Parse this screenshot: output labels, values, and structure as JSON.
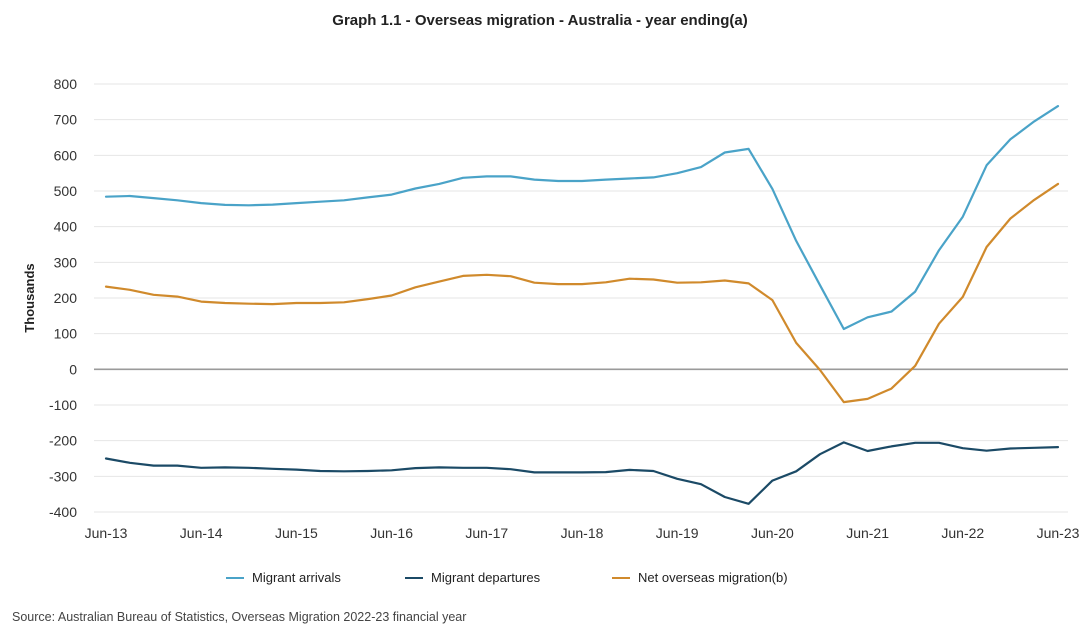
{
  "chart_data": {
    "type": "line",
    "title": "Graph 1.1 - Overseas migration - Australia - year ending(a)",
    "ylabel": "Thousands",
    "xlabel": "",
    "ylim": [
      -400,
      800
    ],
    "yticks": [
      800,
      700,
      600,
      500,
      400,
      300,
      200,
      100,
      0,
      -100,
      -200,
      -300,
      -400
    ],
    "xtick_labels": [
      "Jun-13",
      "Jun-14",
      "Jun-15",
      "Jun-16",
      "Jun-17",
      "Jun-18",
      "Jun-19",
      "Jun-20",
      "Jun-21",
      "Jun-22",
      "Jun-23"
    ],
    "x": [
      "Jun-13",
      "Sep-13",
      "Dec-13",
      "Mar-14",
      "Jun-14",
      "Sep-14",
      "Dec-14",
      "Mar-15",
      "Jun-15",
      "Sep-15",
      "Dec-15",
      "Mar-16",
      "Jun-16",
      "Sep-16",
      "Dec-16",
      "Mar-17",
      "Jun-17",
      "Sep-17",
      "Dec-17",
      "Mar-18",
      "Jun-18",
      "Sep-18",
      "Dec-18",
      "Mar-19",
      "Jun-19",
      "Sep-19",
      "Dec-19",
      "Mar-20",
      "Jun-20",
      "Sep-20",
      "Dec-20",
      "Mar-21",
      "Jun-21",
      "Sep-21",
      "Dec-21",
      "Mar-22",
      "Jun-22",
      "Sep-22",
      "Dec-22",
      "Mar-23",
      "Jun-23"
    ],
    "series": [
      {
        "name": "Migrant arrivals",
        "color": "#4aa3c8",
        "values": [
          484,
          486,
          480,
          474,
          466,
          461,
          460,
          462,
          466,
          470,
          474,
          482,
          490,
          507,
          520,
          537,
          541,
          541,
          532,
          528,
          528,
          532,
          535,
          538,
          550,
          567,
          608,
          618,
          506,
          360,
          236,
          113,
          146,
          162,
          218,
          334,
          428,
          572,
          645,
          695,
          738
        ]
      },
      {
        "name": "Migrant departures",
        "color": "#1b4a66",
        "values": [
          -250,
          -262,
          -270,
          -270,
          -276,
          -275,
          -276,
          -279,
          -281,
          -285,
          -286,
          -285,
          -283,
          -277,
          -275,
          -276,
          -276,
          -280,
          -289,
          -289,
          -289,
          -288,
          -282,
          -285,
          -307,
          -322,
          -358,
          -377,
          -312,
          -286,
          -238,
          -205,
          -229,
          -216,
          -206,
          -206,
          -221,
          -228,
          -222,
          -220,
          -218
        ]
      },
      {
        "name": "Net overseas migration(b)",
        "color": "#d08a2c",
        "values": [
          232,
          223,
          209,
          204,
          190,
          186,
          184,
          183,
          186,
          186,
          188,
          197,
          207,
          230,
          246,
          262,
          265,
          261,
          243,
          239,
          239,
          244,
          254,
          252,
          243,
          244,
          249,
          241,
          194,
          74,
          -2,
          -92,
          -83,
          -54,
          10,
          128,
          203,
          343,
          423,
          475,
          520
        ]
      }
    ],
    "zero_line": true,
    "grid": "horizontal",
    "legend_position": "bottom"
  },
  "source": "Source: Australian Bureau of Statistics, Overseas Migration 2022-23 financial year"
}
